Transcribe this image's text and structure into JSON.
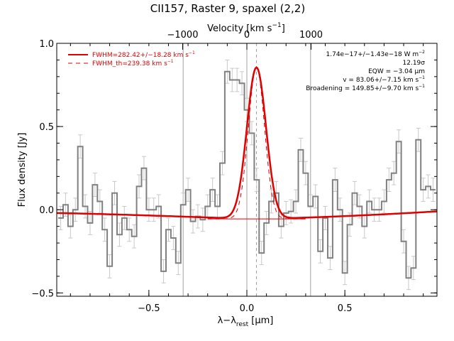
{
  "chart_data": {
    "type": "line",
    "title": "CII157, Raster 9, spaxel (2,2)",
    "xlabel_main": "λ−λ",
    "xlabel_sub": "rest",
    "xlabel_unit": " [μm]",
    "ylabel": "Flux density [Jy]",
    "top_axis_label": "Velocity [km s⁻¹]",
    "xlim": [
      -0.97,
      0.97
    ],
    "ylim": [
      -0.52,
      1.0
    ],
    "top_axis": {
      "label_prefix": "Velocity [km s",
      "label_sup": "−1",
      "label_suffix": "]",
      "ticks": [
        -1000,
        0,
        1000
      ],
      "tick_labels": [
        "−1000",
        "0",
        "1000"
      ],
      "km_s_per_um": 3053
    },
    "x_ticks": [
      -0.5,
      0.0,
      0.5
    ],
    "x_tick_labels": [
      "−0.5",
      "0.0",
      "0.5"
    ],
    "y_ticks": [
      -0.5,
      0.0,
      0.5,
      1.0
    ],
    "y_tick_labels": [
      "−0.5",
      "0.0",
      "0.5",
      "1.0"
    ],
    "vertical_lines": [
      -0.325,
      0.0,
      0.325
    ],
    "center_line": 0.049,
    "legend": [
      {
        "label": "FWHM=282.42+/−18.28 km s",
        "sup": "−1",
        "style": "solid"
      },
      {
        "label": "FWHM_th=239.38 km s",
        "sup": "−1",
        "style": "dashed"
      }
    ],
    "annotations": [
      {
        "text": "1.74e−17+/−1.43e−18 W m",
        "sup": "−2"
      },
      {
        "text": "12.19σ",
        "sup": ""
      },
      {
        "text": "EQW = −3.04 μm",
        "sup": ""
      },
      {
        "text": "v = 83.06+/−7.15 km s",
        "sup": "−1"
      },
      {
        "text": "Broadening = 149.85+/−9.70 km s",
        "sup": "−1"
      }
    ],
    "spectrum": {
      "name": "data",
      "x": [
        -0.95,
        -0.925,
        -0.9,
        -0.875,
        -0.85,
        -0.825,
        -0.8,
        -0.775,
        -0.75,
        -0.725,
        -0.7,
        -0.675,
        -0.65,
        -0.625,
        -0.6,
        -0.575,
        -0.55,
        -0.525,
        -0.5,
        -0.475,
        -0.45,
        -0.425,
        -0.4,
        -0.375,
        -0.35,
        -0.325,
        -0.3,
        -0.275,
        -0.25,
        -0.225,
        -0.2,
        -0.175,
        -0.15,
        -0.125,
        -0.1,
        -0.075,
        -0.05,
        -0.025,
        0.0,
        0.025,
        0.05,
        0.075,
        0.1,
        0.125,
        0.15,
        0.175,
        0.2,
        0.225,
        0.25,
        0.275,
        0.3,
        0.325,
        0.35,
        0.375,
        0.4,
        0.425,
        0.45,
        0.475,
        0.5,
        0.525,
        0.55,
        0.575,
        0.6,
        0.625,
        0.65,
        0.675,
        0.7,
        0.725,
        0.75,
        0.775,
        0.8,
        0.825,
        0.85,
        0.875,
        0.9,
        0.925,
        0.95
      ],
      "y": [
        -0.05,
        0.03,
        -0.1,
        0.0,
        0.38,
        0.02,
        -0.08,
        0.15,
        0.05,
        -0.12,
        -0.34,
        0.1,
        -0.15,
        -0.05,
        -0.12,
        -0.16,
        0.14,
        0.25,
        0.0,
        0.0,
        0.02,
        -0.37,
        -0.12,
        -0.17,
        -0.32,
        0.03,
        0.12,
        -0.07,
        -0.04,
        -0.06,
        0.02,
        0.12,
        0.02,
        0.28,
        0.83,
        0.78,
        0.78,
        0.76,
        0.6,
        0.46,
        0.18,
        -0.26,
        -0.08,
        0.05,
        0.1,
        -0.1,
        -0.02,
        -0.01,
        0.05,
        0.36,
        0.22,
        0.02,
        0.08,
        -0.25,
        -0.05,
        -0.29,
        0.18,
        0.0,
        -0.38,
        -0.09,
        0.1,
        0.02,
        -0.1,
        0.05,
        0.0,
        0.0,
        0.05,
        0.18,
        0.22,
        0.41,
        -0.19,
        -0.41,
        -0.35,
        0.42,
        0.12,
        0.14,
        0.12
      ],
      "err": 0.07
    },
    "fit": {
      "name": "fit",
      "center": 0.049,
      "amplitude": 0.91,
      "sigma": 0.0488,
      "baseline_left": -0.02,
      "baseline_min": -0.055,
      "baseline_right": -0.01
    },
    "thermal": {
      "name": "thermal",
      "center": 0.049,
      "amplitude": 0.91,
      "sigma": 0.0414
    },
    "colors": {
      "fit": "#e00000",
      "data": "#808080",
      "error": "#c8c8c8",
      "axes": "#000000",
      "guide": "#a0a0a0"
    }
  }
}
